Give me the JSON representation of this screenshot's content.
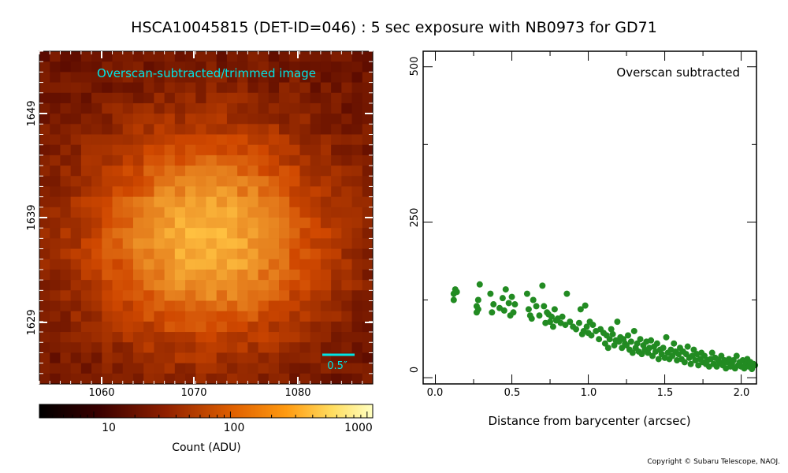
{
  "title": "HSCA10045815 (DET-ID=046) :  5 sec exposure with NB0973 for GD71",
  "copyright": "Copyright © Subaru Telescope, NAOJ.",
  "chart_data": [
    {
      "type": "heatmap",
      "annotation": "Overscan-subtracted/trimmed image",
      "scale_bar_label": "0.5″",
      "x_ticks": [
        "1060",
        "1070",
        "1080"
      ],
      "y_ticks": [
        "1649",
        "1639",
        "1629"
      ],
      "x_range": [
        1054,
        1086
      ],
      "y_range": [
        1624,
        1656
      ],
      "peak_position": [
        1070,
        1638
      ],
      "colors": {
        "low": "#5a0a00",
        "mid": "#d04800",
        "high": "#ffc040",
        "marker": "#00e5e5"
      }
    },
    {
      "type": "colorbar",
      "scale": "log",
      "tick_labels": [
        "10",
        "100",
        "1000"
      ],
      "label": "Count (ADU)",
      "range": [
        4,
        1100
      ]
    },
    {
      "type": "scatter",
      "annotation": "Overscan subtracted",
      "xlabel": "Distance from barycenter (arcsec)",
      "xlim": [
        -0.08,
        2.1
      ],
      "ylim": [
        -10,
        525
      ],
      "x_ticks": [
        "0.0",
        "0.5",
        "1.0",
        "1.5",
        "2.0"
      ],
      "y_ticks": [
        "0",
        "250",
        "500"
      ],
      "color": "#228b22",
      "points": [
        [
          0.12,
          135
        ],
        [
          0.13,
          142
        ],
        [
          0.12,
          125
        ],
        [
          0.14,
          138
        ],
        [
          0.27,
          115
        ],
        [
          0.28,
          125
        ],
        [
          0.29,
          150
        ],
        [
          0.27,
          105
        ],
        [
          0.28,
          110
        ],
        [
          0.36,
          135
        ],
        [
          0.37,
          105
        ],
        [
          0.38,
          118
        ],
        [
          0.42,
          112
        ],
        [
          0.44,
          128
        ],
        [
          0.45,
          108
        ],
        [
          0.46,
          142
        ],
        [
          0.48,
          120
        ],
        [
          0.49,
          100
        ],
        [
          0.5,
          130
        ],
        [
          0.51,
          105
        ],
        [
          0.52,
          118
        ],
        [
          0.6,
          135
        ],
        [
          0.61,
          110
        ],
        [
          0.62,
          100
        ],
        [
          0.63,
          95
        ],
        [
          0.64,
          125
        ],
        [
          0.66,
          115
        ],
        [
          0.68,
          100
        ],
        [
          0.7,
          148
        ],
        [
          0.71,
          115
        ],
        [
          0.72,
          88
        ],
        [
          0.73,
          105
        ],
        [
          0.74,
          102
        ],
        [
          0.75,
          90
        ],
        [
          0.76,
          98
        ],
        [
          0.77,
          82
        ],
        [
          0.78,
          110
        ],
        [
          0.79,
          92
        ],
        [
          0.8,
          95
        ],
        [
          0.82,
          88
        ],
        [
          0.83,
          98
        ],
        [
          0.85,
          85
        ],
        [
          0.86,
          135
        ],
        [
          0.88,
          90
        ],
        [
          0.9,
          82
        ],
        [
          0.92,
          78
        ],
        [
          0.94,
          88
        ],
        [
          0.95,
          110
        ],
        [
          0.96,
          70
        ],
        [
          0.97,
          75
        ],
        [
          0.98,
          116
        ],
        [
          0.99,
          82
        ],
        [
          1.0,
          72
        ],
        [
          1.01,
          90
        ],
        [
          1.02,
          68
        ],
        [
          1.03,
          85
        ],
        [
          1.05,
          75
        ],
        [
          1.07,
          62
        ],
        [
          1.08,
          78
        ],
        [
          1.1,
          72
        ],
        [
          1.11,
          55
        ],
        [
          1.12,
          68
        ],
        [
          1.13,
          48
        ],
        [
          1.14,
          62
        ],
        [
          1.15,
          78
        ],
        [
          1.16,
          70
        ],
        [
          1.17,
          52
        ],
        [
          1.18,
          60
        ],
        [
          1.19,
          90
        ],
        [
          1.2,
          58
        ],
        [
          1.21,
          65
        ],
        [
          1.22,
          48
        ],
        [
          1.23,
          62
        ],
        [
          1.24,
          55
        ],
        [
          1.25,
          52
        ],
        [
          1.26,
          68
        ],
        [
          1.27,
          45
        ],
        [
          1.28,
          58
        ],
        [
          1.29,
          40
        ],
        [
          1.3,
          75
        ],
        [
          1.31,
          48
        ],
        [
          1.32,
          55
        ],
        [
          1.33,
          42
        ],
        [
          1.34,
          62
        ],
        [
          1.35,
          38
        ],
        [
          1.36,
          52
        ],
        [
          1.37,
          45
        ],
        [
          1.38,
          58
        ],
        [
          1.39,
          40
        ],
        [
          1.4,
          48
        ],
        [
          1.41,
          60
        ],
        [
          1.42,
          35
        ],
        [
          1.43,
          50
        ],
        [
          1.44,
          42
        ],
        [
          1.45,
          55
        ],
        [
          1.46,
          30
        ],
        [
          1.47,
          45
        ],
        [
          1.48,
          38
        ],
        [
          1.49,
          48
        ],
        [
          1.5,
          32
        ],
        [
          1.51,
          65
        ],
        [
          1.52,
          40
        ],
        [
          1.53,
          30
        ],
        [
          1.54,
          45
        ],
        [
          1.55,
          35
        ],
        [
          1.56,
          55
        ],
        [
          1.57,
          42
        ],
        [
          1.58,
          28
        ],
        [
          1.59,
          38
        ],
        [
          1.6,
          48
        ],
        [
          1.61,
          30
        ],
        [
          1.62,
          42
        ],
        [
          1.63,
          25
        ],
        [
          1.64,
          38
        ],
        [
          1.65,
          50
        ],
        [
          1.66,
          32
        ],
        [
          1.67,
          22
        ],
        [
          1.68,
          35
        ],
        [
          1.69,
          45
        ],
        [
          1.7,
          28
        ],
        [
          1.71,
          38
        ],
        [
          1.72,
          20
        ],
        [
          1.73,
          30
        ],
        [
          1.74,
          40
        ],
        [
          1.75,
          25
        ],
        [
          1.76,
          35
        ],
        [
          1.77,
          22
        ],
        [
          1.78,
          28
        ],
        [
          1.79,
          18
        ],
        [
          1.8,
          30
        ],
        [
          1.81,
          40
        ],
        [
          1.82,
          22
        ],
        [
          1.83,
          32
        ],
        [
          1.84,
          18
        ],
        [
          1.85,
          28
        ],
        [
          1.86,
          24
        ],
        [
          1.87,
          35
        ],
        [
          1.88,
          20
        ],
        [
          1.89,
          28
        ],
        [
          1.9,
          15
        ],
        [
          1.91,
          25
        ],
        [
          1.92,
          30
        ],
        [
          1.93,
          18
        ],
        [
          1.94,
          22
        ],
        [
          1.95,
          28
        ],
        [
          1.96,
          15
        ],
        [
          1.97,
          35
        ],
        [
          1.98,
          20
        ],
        [
          1.99,
          25
        ],
        [
          2.0,
          18
        ],
        [
          2.01,
          28
        ],
        [
          2.02,
          15
        ],
        [
          2.03,
          22
        ],
        [
          2.04,
          30
        ],
        [
          2.05,
          18
        ],
        [
          2.06,
          25
        ],
        [
          2.07,
          14
        ],
        [
          2.08,
          22
        ],
        [
          2.09,
          20
        ]
      ]
    }
  ]
}
